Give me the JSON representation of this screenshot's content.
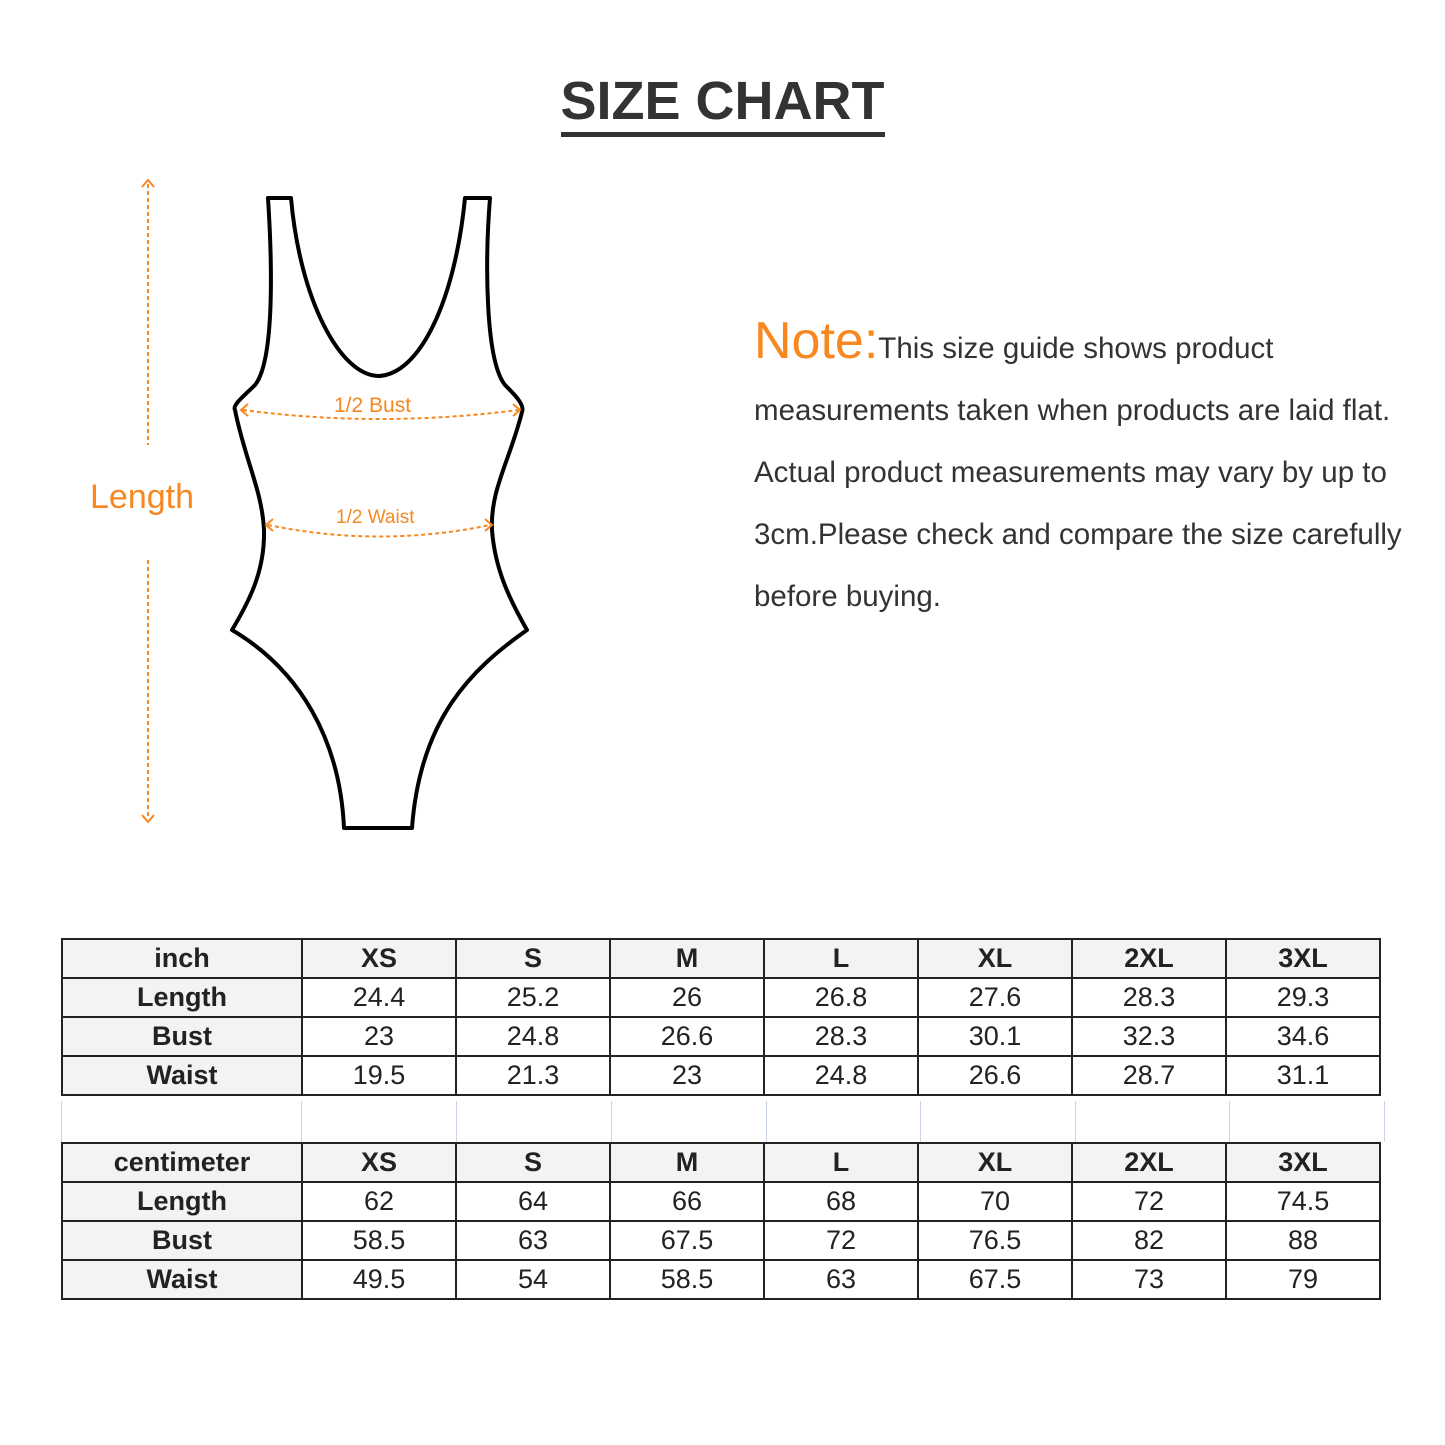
{
  "title": "SIZE CHART",
  "note": {
    "label": "Note:",
    "text": "This size guide shows product measurements taken when products are laid flat. Actual product measurements may vary by up to 3cm.Please check and compare the size carefully before buying."
  },
  "diagram": {
    "length": "Length",
    "bust": "1/2 Bust",
    "waist": "1/2 Waist",
    "accent_color": "#f7871e"
  },
  "tables": [
    {
      "unit": "inch",
      "sizes": [
        "XS",
        "S",
        "M",
        "L",
        "XL",
        "2XL",
        "3XL"
      ],
      "rows": [
        {
          "label": "Length",
          "values": [
            "24.4",
            "25.2",
            "26",
            "26.8",
            "27.6",
            "28.3",
            "29.3"
          ]
        },
        {
          "label": "Bust",
          "values": [
            "23",
            "24.8",
            "26.6",
            "28.3",
            "30.1",
            "32.3",
            "34.6"
          ]
        },
        {
          "label": "Waist",
          "values": [
            "19.5",
            "21.3",
            "23",
            "24.8",
            "26.6",
            "28.7",
            "31.1"
          ]
        }
      ]
    },
    {
      "unit": "centimeter",
      "sizes": [
        "XS",
        "S",
        "M",
        "L",
        "XL",
        "2XL",
        "3XL"
      ],
      "rows": [
        {
          "label": "Length",
          "values": [
            "62",
            "64",
            "66",
            "68",
            "70",
            "72",
            "74.5"
          ]
        },
        {
          "label": "Bust",
          "values": [
            "58.5",
            "63",
            "67.5",
            "72",
            "76.5",
            "82",
            "88"
          ]
        },
        {
          "label": "Waist",
          "values": [
            "49.5",
            "54",
            "58.5",
            "63",
            "67.5",
            "73",
            "79"
          ]
        }
      ]
    }
  ]
}
